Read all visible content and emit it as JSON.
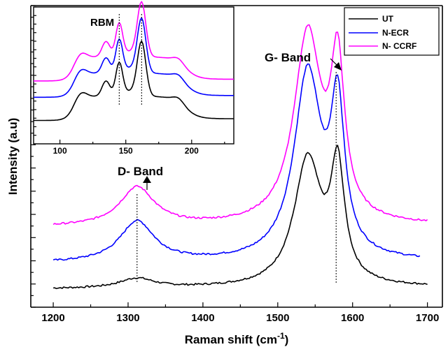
{
  "chart_data": [
    {
      "type": "line",
      "xlabel": "Raman shift (cm",
      "xlabel_sup": "-1",
      "xlabel_close": ")",
      "ylabel": "Intensity (a.u)",
      "xlim": [
        1170,
        1720
      ],
      "ylim": [
        0,
        1
      ],
      "xticks": [
        1200,
        1300,
        1400,
        1500,
        1600,
        1700
      ],
      "y_tick_labels": "none",
      "grid": false,
      "legend_position": "top-right",
      "series": [
        {
          "name": "UT",
          "color": "#000000",
          "x_start": 1200,
          "x_end": 1700,
          "baseline": 0.06,
          "d_peak": 0.032,
          "g_shoulder": 0.42,
          "g_peak": 0.6
        },
        {
          "name": "N-ECR",
          "color": "#0000ff",
          "x_start": 1200,
          "x_end": 1690,
          "baseline": 0.145,
          "d_peak": 0.135,
          "g_shoulder": 0.62,
          "g_peak": 0.77
        },
        {
          "name": "N- CCRF",
          "color": "#ff00ff",
          "x_start": 1200,
          "x_end": 1700,
          "baseline": 0.265,
          "d_peak": 0.128,
          "g_shoulder": 0.63,
          "g_peak": 0.8
        }
      ],
      "annotations": [
        {
          "text": "D- Band",
          "x": 1312
        },
        {
          "text": "G- Band",
          "x": 1578
        }
      ]
    },
    {
      "type": "line",
      "title": "RBM",
      "xlim": [
        80,
        232
      ],
      "xticks": [
        100,
        150,
        200
      ],
      "grid": false,
      "peaks": [
        116,
        135,
        145,
        162,
        190
      ],
      "series": [
        {
          "name": "UT",
          "color": "#000000",
          "offset": 0.0
        },
        {
          "name": "N-ECR",
          "color": "#0000ff",
          "offset": 0.27
        },
        {
          "name": "N- CCRF",
          "color": "#ff00ff",
          "offset": 0.46
        }
      ]
    }
  ]
}
